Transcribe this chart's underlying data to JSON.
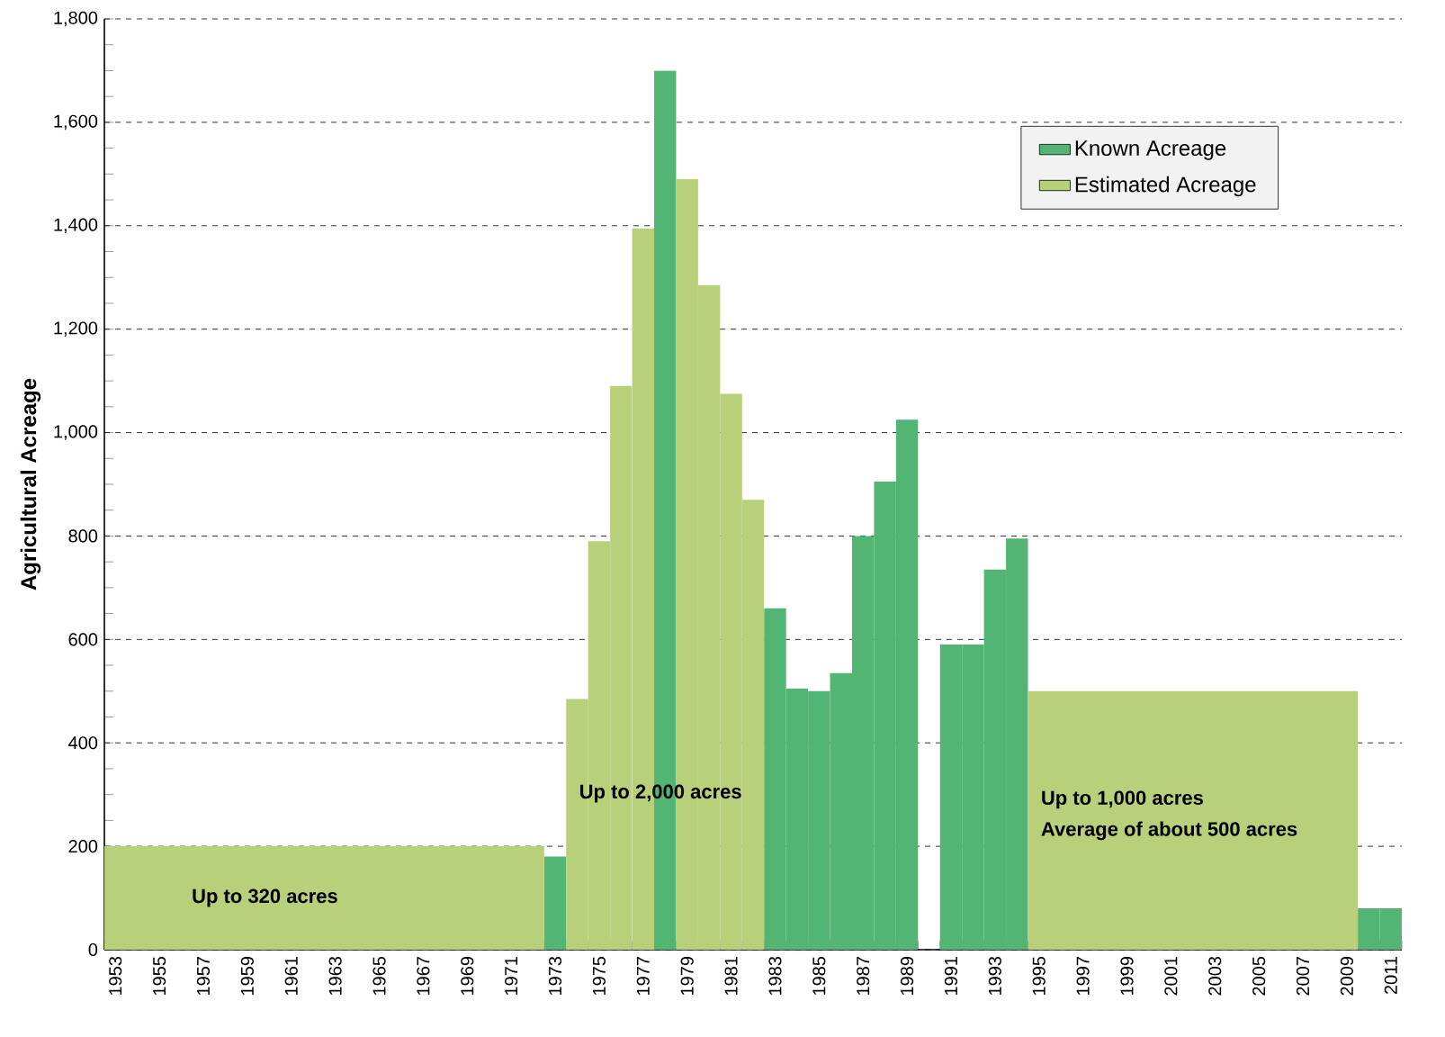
{
  "chart_data": {
    "type": "bar",
    "ylabel": "Agricultural Acreage",
    "series": [
      {
        "name": "Known Acreage",
        "color": "#52b573",
        "x": [
          1973,
          1978,
          1983,
          1984,
          1985,
          1986,
          1987,
          1988,
          1989,
          1990,
          1991,
          1992,
          1993,
          1994,
          2010,
          2011
        ],
        "values": [
          180,
          1700,
          660,
          505,
          500,
          535,
          800,
          905,
          1025,
          0,
          590,
          590,
          735,
          795,
          80,
          80
        ]
      },
      {
        "name": "Estimated Acreage",
        "color": "#b8d07a",
        "type": "histogram",
        "bins": [
          1952.5,
          1972.5,
          1973.5,
          1974.5,
          1975.5,
          1976.5,
          1977.5,
          1978.5,
          1979.5,
          1980.5,
          1981.5,
          1982.5,
          1994.5,
          2009.5
        ],
        "values": [
          200,
          null,
          485,
          790,
          1090,
          1395,
          null,
          1490,
          1285,
          1075,
          870,
          null,
          500
        ]
      }
    ],
    "xlim": [
      1952.5,
      2011.5
    ],
    "xticks": [
      1953,
      1955,
      1957,
      1959,
      1961,
      1963,
      1965,
      1967,
      1969,
      1971,
      1973,
      1975,
      1977,
      1979,
      1981,
      1983,
      1985,
      1987,
      1989,
      1991,
      1993,
      1995,
      1997,
      1999,
      2001,
      2003,
      2005,
      2007,
      2009,
      2011
    ],
    "ylim": [
      0,
      1800
    ],
    "yticks": [
      0,
      200,
      400,
      600,
      800,
      {
        "value": 1000,
        "label": "1,000"
      },
      {
        "value": 1200,
        "label": "1,200"
      },
      {
        "value": 1400,
        "label": "1,400"
      },
      {
        "value": 1600,
        "label": "1,600"
      },
      {
        "value": 1800,
        "label": "1,800"
      }
    ],
    "grid": "y",
    "legend": "top right",
    "annotations": [
      "Up to 320 acres",
      "Up to 2,000 acres",
      "Up to 1,000 acres",
      "Average of about 500 acres"
    ]
  }
}
